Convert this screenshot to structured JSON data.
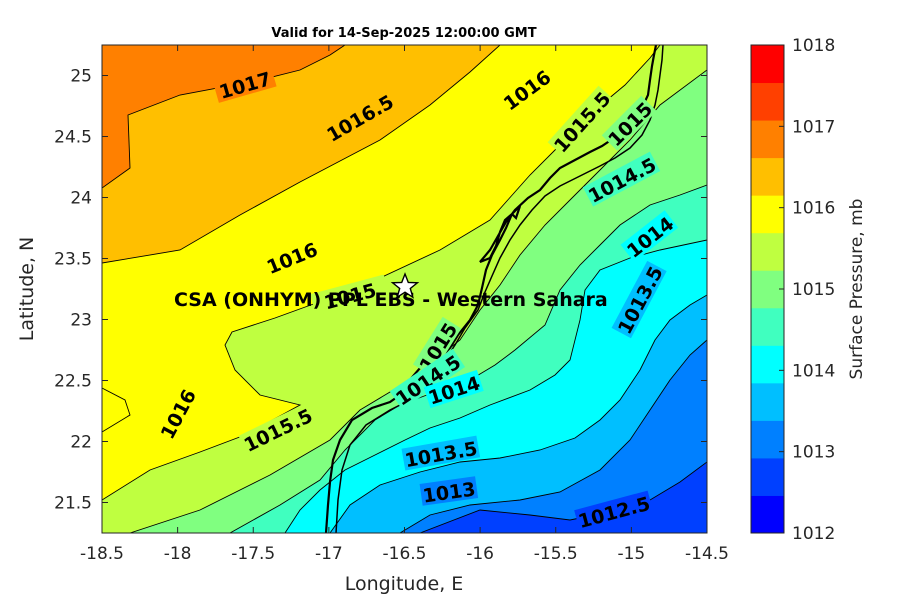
{
  "title": "Valid for 14-Sep-2025 12:00:00 GMT",
  "x_label": "Longitude, E",
  "y_label": "Latitude, N",
  "colorbar_label": "Surface Pressure, mb",
  "site_label": "CSA (ONHYM) PPL EBS  - Western Sahara",
  "site_marker": {
    "lon": -16.5,
    "lat": 23.3,
    "icon": "star-icon"
  },
  "x_ticks": [
    "-18.5",
    "-18",
    "-17.5",
    "-17",
    "-16.5",
    "-16",
    "-15.5",
    "-15",
    "-14.5"
  ],
  "y_ticks": [
    "25",
    "24.5",
    "24",
    "23.5",
    "23",
    "22.5",
    "22",
    "21.5"
  ],
  "colorbar_ticks": [
    "1018",
    "1017",
    "1016",
    "1015",
    "1014",
    "1013",
    "1012"
  ],
  "colorbar_colors": [
    "#0000ff",
    "#0040ff",
    "#0080ff",
    "#00bfff",
    "#00ffff",
    "#40ffbf",
    "#80ff80",
    "#bfff40",
    "#ffff00",
    "#ffbf00",
    "#ff8000",
    "#ff4000",
    "#ff0000"
  ],
  "contour_labels": [
    "1017",
    "1016.5",
    "1016",
    "1015.5",
    "1015",
    "1014.5",
    "1014",
    "1016",
    "1015",
    "1013.5",
    "1016",
    "1015.5",
    "1015",
    "1014.5",
    "1014",
    "1013.5",
    "1013",
    "1012.5"
  ],
  "chart_data": {
    "type": "contour",
    "variable": "Surface Pressure, mb",
    "xlim": [
      -18.5,
      -14.5
    ],
    "ylim": [
      21.25,
      25.25
    ],
    "clim": [
      1012,
      1018
    ],
    "contour_interval": 0.5,
    "colormap": "jet",
    "field_trend": "pressure decreases from northwest (~1017.5 mb) to southeast (~1012.3 mb)",
    "grid": false
  }
}
